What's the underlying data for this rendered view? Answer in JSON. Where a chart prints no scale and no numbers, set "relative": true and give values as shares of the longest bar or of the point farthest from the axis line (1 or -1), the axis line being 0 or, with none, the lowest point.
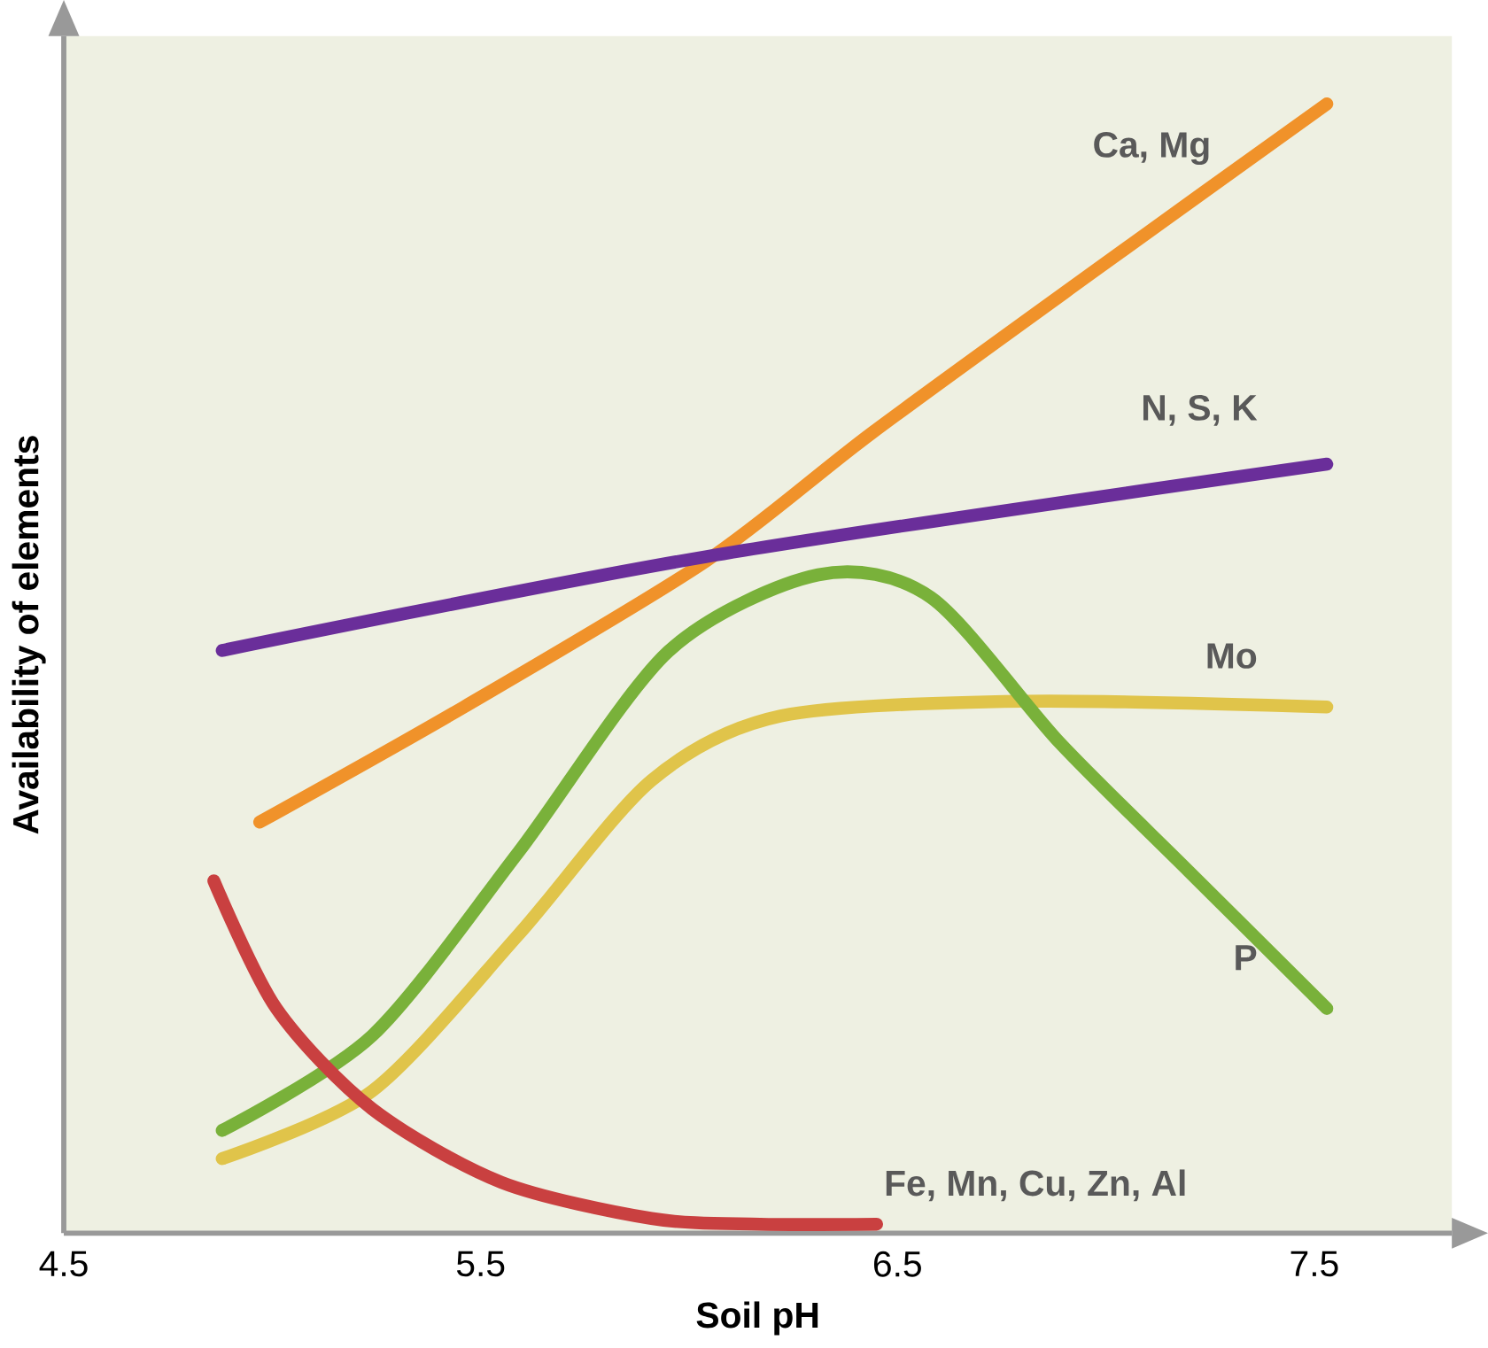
{
  "chart_data": {
    "type": "line",
    "relative": true,
    "xlabel": "Soil pH",
    "ylabel": "Availability of elements",
    "xlim": [
      4.5,
      7.83
    ],
    "xticks": [
      4.5,
      5.5,
      6.5,
      7.5
    ],
    "legend": false,
    "series": [
      {
        "name": "Ca, Mg",
        "color": "#f0922a",
        "x": [
          4.97,
          5.46,
          6.04,
          6.44,
          6.98,
          7.53
        ],
        "values": [
          0.364,
          0.466,
          0.595,
          0.709,
          0.854,
          1
        ]
      },
      {
        "name": "N, S, K",
        "color": "#6a2e9a",
        "x": [
          4.88,
          6.04,
          7.53
        ],
        "values": [
          0.516,
          0.599,
          0.681
        ]
      },
      {
        "name": "Mo",
        "color": "#e0c44a",
        "x": [
          4.88,
          5.24,
          5.59,
          5.91,
          6.22,
          6.8,
          7.53
        ],
        "values": [
          0.066,
          0.126,
          0.264,
          0.401,
          0.458,
          0.471,
          0.466
        ]
      },
      {
        "name": "P",
        "color": "#79b13a",
        "x": [
          4.88,
          5.24,
          5.59,
          5.95,
          6.31,
          6.58,
          6.89,
          7.2,
          7.53
        ],
        "values": [
          0.091,
          0.175,
          0.337,
          0.515,
          0.583,
          0.563,
          0.434,
          0.32,
          0.199
        ]
      },
      {
        "name": "Fe, Mn, Cu, Zn, Al",
        "color": "#c94040",
        "x": [
          4.86,
          5.01,
          5.24,
          5.55,
          5.91,
          6.17,
          6.45
        ],
        "values": [
          0.312,
          0.199,
          0.11,
          0.045,
          0.013,
          0.008,
          0.008
        ]
      }
    ]
  }
}
